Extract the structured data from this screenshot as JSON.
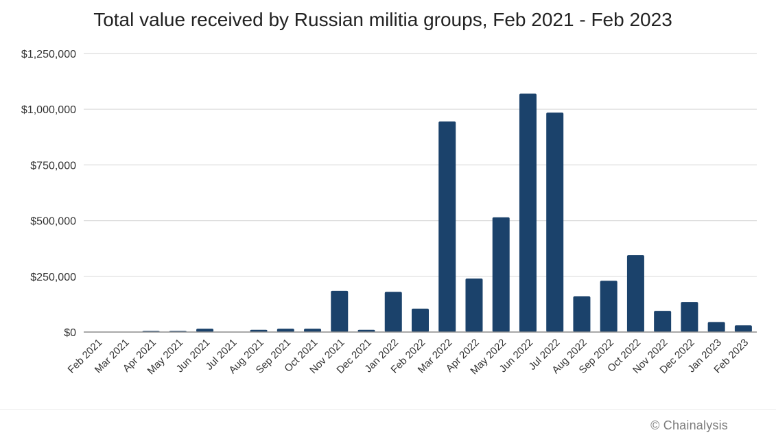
{
  "chart_data": {
    "type": "bar",
    "title": "Total value received by Russian militia groups, Feb 2021 - Feb 2023",
    "xlabel": "",
    "ylabel": "",
    "categories": [
      "Feb 2021",
      "Mar 2021",
      "Apr 2021",
      "May 2021",
      "Jun 2021",
      "Jul 2021",
      "Aug 2021",
      "Sep 2021",
      "Oct 2021",
      "Nov 2021",
      "Dec 2021",
      "Jan 2022",
      "Feb 2022",
      "Mar 2022",
      "Apr 2022",
      "May 2022",
      "Jun 2022",
      "Jul 2022",
      "Aug 2022",
      "Sep 2022",
      "Oct 2022",
      "Nov 2022",
      "Dec 2022",
      "Jan 2023",
      "Feb 2023"
    ],
    "values": [
      0,
      0,
      5000,
      5000,
      15000,
      0,
      10000,
      15000,
      15000,
      185000,
      10000,
      180000,
      105000,
      945000,
      240000,
      515000,
      1070000,
      985000,
      160000,
      230000,
      345000,
      95000,
      135000,
      45000,
      30000
    ],
    "ylim": [
      0,
      1250000
    ],
    "yticks": [
      0,
      250000,
      500000,
      750000,
      1000000,
      1250000
    ],
    "ytick_labels": [
      "$0",
      "$250,000",
      "$500,000",
      "$750,000",
      "$1,000,000",
      "$1,250,000"
    ],
    "grid": true,
    "bar_color": "#1b426b",
    "grid_color": "#dcdcdc",
    "axis_color": "#8c8c8c"
  },
  "footer": {
    "credit": "© Chainalysis"
  }
}
